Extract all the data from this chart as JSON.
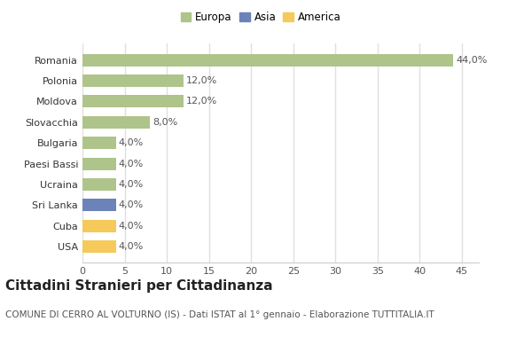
{
  "categories": [
    "Romania",
    "Polonia",
    "Moldova",
    "Slovacchia",
    "Bulgaria",
    "Paesi Bassi",
    "Ucraina",
    "Sri Lanka",
    "Cuba",
    "USA"
  ],
  "values": [
    44.0,
    12.0,
    12.0,
    8.0,
    4.0,
    4.0,
    4.0,
    4.0,
    4.0,
    4.0
  ],
  "labels": [
    "44,0%",
    "12,0%",
    "12,0%",
    "8,0%",
    "4,0%",
    "4,0%",
    "4,0%",
    "4,0%",
    "4,0%",
    "4,0%"
  ],
  "bar_colors": [
    "#aec48a",
    "#aec48a",
    "#aec48a",
    "#aec48a",
    "#aec48a",
    "#aec48a",
    "#aec48a",
    "#6b83b8",
    "#f5c95a",
    "#f5c95a"
  ],
  "legend_labels": [
    "Europa",
    "Asia",
    "America"
  ],
  "legend_colors": [
    "#aec48a",
    "#6b83b8",
    "#f5c95a"
  ],
  "title": "Cittadini Stranieri per Cittadinanza",
  "subtitle": "COMUNE DI CERRO AL VOLTURNO (IS) - Dati ISTAT al 1° gennaio - Elaborazione TUTTITALIA.IT",
  "xlim": [
    0,
    47
  ],
  "xticks": [
    0,
    5,
    10,
    15,
    20,
    25,
    30,
    35,
    40,
    45
  ],
  "background_color": "#ffffff",
  "plot_bg_color": "#ffffff",
  "grid_color": "#e0e0e0",
  "bar_height": 0.6,
  "label_fontsize": 8,
  "title_fontsize": 11,
  "subtitle_fontsize": 7.5,
  "tick_fontsize": 8,
  "legend_fontsize": 8.5
}
